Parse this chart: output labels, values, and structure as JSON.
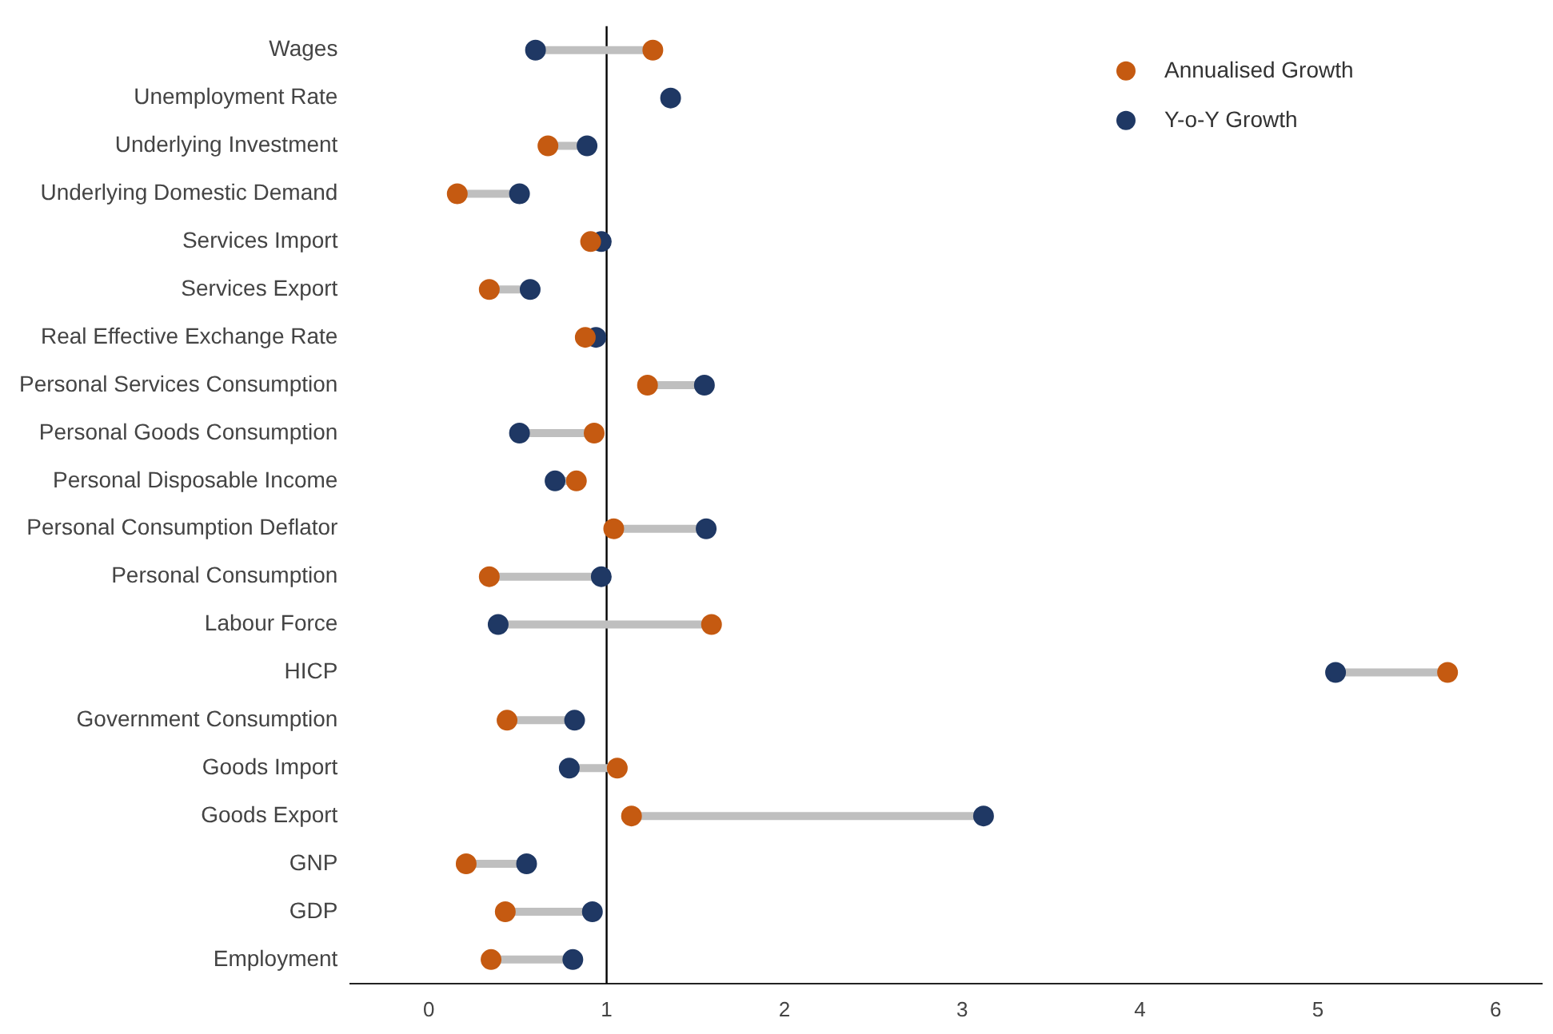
{
  "chart_data": {
    "type": "scatter",
    "orientation": "horizontal",
    "categories": [
      "Wages",
      "Unemployment Rate",
      "Underlying Investment",
      "Underlying Domestic Demand",
      "Services Import",
      "Services Export",
      "Real Effective Exchange Rate",
      "Personal Services Consumption",
      "Personal Goods Consumption",
      "Personal Disposable Income",
      "Personal Consumption Deflator",
      "Personal Consumption",
      "Labour Force",
      "HICP",
      "Government Consumption",
      "Goods Import",
      "Goods Export",
      "GNP",
      "GDP",
      "Employment"
    ],
    "series": [
      {
        "name": "Annualised Growth",
        "color": "#c55a11",
        "values": [
          1.26,
          null,
          0.67,
          0.16,
          0.91,
          0.34,
          0.88,
          1.23,
          0.93,
          0.83,
          1.04,
          0.34,
          1.59,
          5.73,
          0.44,
          1.06,
          1.14,
          0.21,
          0.43,
          0.35
        ]
      },
      {
        "name": "Y-o-Y Growth",
        "color": "#1f3864",
        "values": [
          0.6,
          1.36,
          0.89,
          0.51,
          0.97,
          0.57,
          0.94,
          1.55,
          0.51,
          0.71,
          1.56,
          0.97,
          0.39,
          5.1,
          0.82,
          0.79,
          3.12,
          0.55,
          0.92,
          0.81
        ]
      }
    ],
    "xlim": [
      -0.44,
      6.26
    ],
    "xticks": [
      0,
      1,
      2,
      3,
      4,
      5,
      6
    ],
    "ref_lines": [
      {
        "axis": "x",
        "value": 1,
        "color": "#000000"
      }
    ],
    "legend": "top right",
    "marker": "circle",
    "grid": false
  }
}
